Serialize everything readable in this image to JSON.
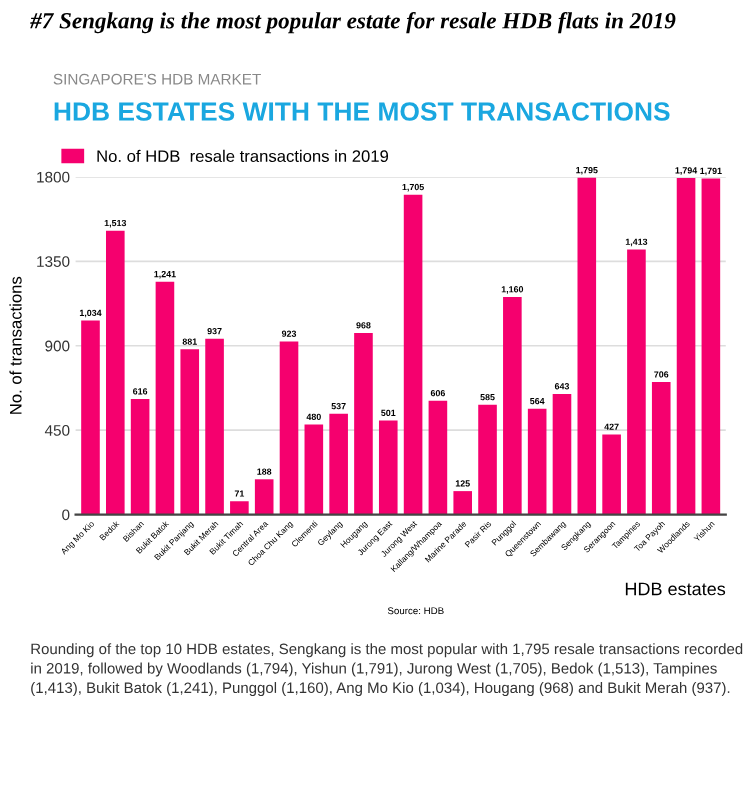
{
  "chart_data": {
    "type": "bar",
    "title": "HDB ESTATES WITH THE MOST TRANSACTIONS",
    "subtitle": "SINGAPORE'S HDB MARKET",
    "xlabel": "HDB estates",
    "ylabel": "No. of transactions",
    "categories": [
      "Ang Mo Kio",
      "Bedok",
      "Bishan",
      "Bukit Batok",
      "Bukit Panjang",
      "Bukit Merah",
      "Bukit Timah",
      "Central Area",
      "Choa Chu Kang",
      "Clementi",
      "Geylang",
      "Hougang",
      "Jurong East",
      "Jurong West",
      "Kallang/Whampoa",
      "Marine Parade",
      "Pasir Ris",
      "Punggol",
      "Queenstown",
      "Sembawang",
      "Sengkang",
      "Serangoon",
      "Tampines",
      "Toa Payoh",
      "Woodlands",
      "Yishun"
    ],
    "series": [
      {
        "name": "No. of HDB  resale transactions in 2019",
        "color": "#f5006e",
        "values": [
          1034,
          1513,
          616,
          1241,
          881,
          937,
          71,
          188,
          923,
          480,
          537,
          968,
          501,
          1705,
          606,
          125,
          585,
          1160,
          564,
          643,
          1795,
          427,
          1413,
          706,
          1794,
          1791
        ],
        "value_labels": [
          "1,034",
          "1,513",
          "616",
          "1,241",
          "881",
          "937",
          "71",
          "188",
          "923",
          "480",
          "537",
          "968",
          "501",
          "1,705",
          "606",
          "125",
          "585",
          "1,160",
          "564",
          "643",
          "1,795",
          "427",
          "1,413",
          "706",
          "1,794",
          "1,791"
        ]
      }
    ],
    "ylim": [
      0,
      1800
    ],
    "yticks": [
      0,
      450,
      900,
      1350,
      1800
    ],
    "grid": "y",
    "legend": "top left",
    "annotations": [
      "#7 Sengkang is the most popular estate for resale HDB flats in 2019",
      "Source: HDB",
      "Rounding of the top 10 HDB estates, Sengkang is the most popular with 1,795 resale transactions recorded in 2019, followed by Woodlands (1,794), Yishun (1,791), Jurong West (1,705), Bedok (1,513), Tampines (1,413), Bukit Batok (1,241), Punggol (1,160), Ang Mo Kio (1,034), Hougang (968) and Bukit Merah (937)."
    ]
  }
}
